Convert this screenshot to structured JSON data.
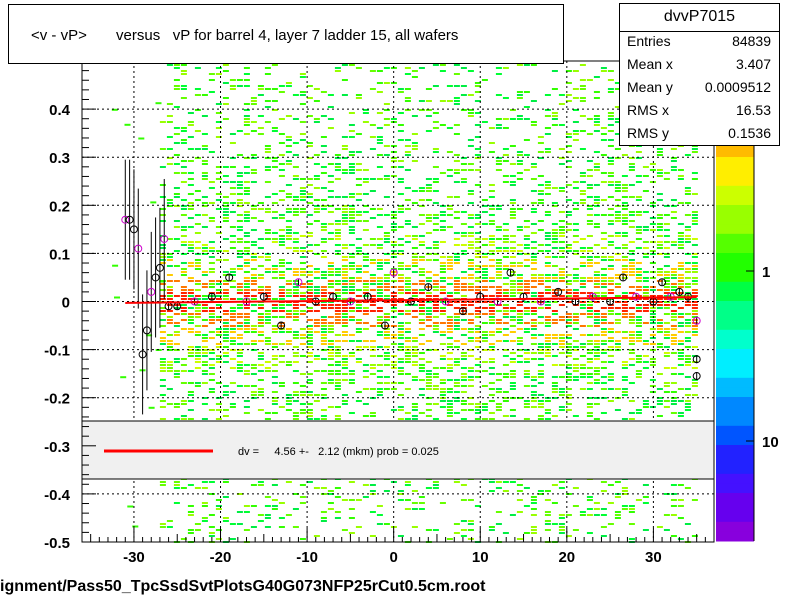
{
  "title": "<v - vP>       versus   vP for barrel 4, layer 7 ladder 15, all wafers",
  "stats": {
    "name": "dvvP7015",
    "rows": [
      {
        "label": "Entries",
        "value": "84839"
      },
      {
        "label": "Mean x",
        "value": "3.407"
      },
      {
        "label": "Mean y",
        "value": "0.0009512"
      },
      {
        "label": "RMS x",
        "value": "16.53"
      },
      {
        "label": "RMS y",
        "value": "0.1536"
      }
    ]
  },
  "legend": {
    "text": "dv =     4.56 +-   2.12 (mkm) prob = 0.025",
    "line_color": "#ff0000"
  },
  "footer": "ignment/Pass50_TpcSsdSvtPlotsG40G073NFP25rCut0.5cm.root",
  "chart_data": {
    "type": "heatmap",
    "xlim": [
      -36,
      37
    ],
    "ylim": [
      -0.5,
      0.5
    ],
    "x_ticks": [
      -30,
      -20,
      -10,
      0,
      10,
      20,
      30
    ],
    "y_ticks": [
      -0.5,
      -0.4,
      -0.3,
      -0.2,
      -0.1,
      0,
      0.1,
      0.2,
      0.3,
      0.4
    ],
    "y_tick_labels": [
      "-0.5",
      "-0.4",
      "-0.3",
      "-0.2",
      "-0.1",
      "0",
      "0.1",
      "0.2",
      "0.3",
      "0.4"
    ],
    "color_scale": {
      "type": "log",
      "ticks": [
        1,
        10
      ],
      "tick_labels": [
        "1",
        "10"
      ]
    },
    "density_x_range": [
      -27,
      35
    ],
    "profile_points": [
      {
        "x": -31,
        "y": 0.17
      },
      {
        "x": -30.5,
        "y": 0.17
      },
      {
        "x": -30,
        "y": 0.15
      },
      {
        "x": -29.5,
        "y": 0.11
      },
      {
        "x": -29,
        "y": -0.11
      },
      {
        "x": -28.5,
        "y": -0.06
      },
      {
        "x": -28,
        "y": 0.02
      },
      {
        "x": -27.5,
        "y": 0.05
      },
      {
        "x": -27,
        "y": 0.07
      },
      {
        "x": -26.5,
        "y": 0.13
      },
      {
        "x": -26,
        "y": -0.01
      },
      {
        "x": -25,
        "y": -0.01
      },
      {
        "x": -23,
        "y": 0.0
      },
      {
        "x": -21,
        "y": 0.01
      },
      {
        "x": -19,
        "y": 0.05
      },
      {
        "x": -17,
        "y": 0.0
      },
      {
        "x": -15,
        "y": 0.01
      },
      {
        "x": -13,
        "y": -0.05
      },
      {
        "x": -11,
        "y": 0.04
      },
      {
        "x": -9,
        "y": 0.0
      },
      {
        "x": -7,
        "y": 0.01
      },
      {
        "x": -5,
        "y": 0.0
      },
      {
        "x": -3,
        "y": 0.01
      },
      {
        "x": -1,
        "y": -0.05
      },
      {
        "x": 0,
        "y": 0.06
      },
      {
        "x": 2,
        "y": 0.0
      },
      {
        "x": 4,
        "y": 0.03
      },
      {
        "x": 6,
        "y": 0.0
      },
      {
        "x": 8,
        "y": -0.02
      },
      {
        "x": 10,
        "y": 0.01
      },
      {
        "x": 12,
        "y": 0.0
      },
      {
        "x": 13.5,
        "y": 0.06
      },
      {
        "x": 15,
        "y": 0.01
      },
      {
        "x": 17,
        "y": 0.0
      },
      {
        "x": 19,
        "y": 0.02
      },
      {
        "x": 21,
        "y": 0.0
      },
      {
        "x": 23,
        "y": 0.01
      },
      {
        "x": 25,
        "y": 0.0
      },
      {
        "x": 26.5,
        "y": 0.05
      },
      {
        "x": 28,
        "y": 0.01
      },
      {
        "x": 30,
        "y": 0.0
      },
      {
        "x": 31,
        "y": 0.04
      },
      {
        "x": 32,
        "y": 0.01
      },
      {
        "x": 33,
        "y": 0.02
      },
      {
        "x": 34,
        "y": 0.01
      },
      {
        "x": 35,
        "y": -0.04
      },
      {
        "x": 35,
        "y": -0.12
      },
      {
        "x": 35,
        "y": -0.155
      }
    ],
    "fit_line": {
      "x": [
        -31,
        35
      ],
      "y": [
        -0.003,
        0.009
      ]
    },
    "colors": {
      "low": "#33ff00",
      "mid": "#ffcc00",
      "high": "#ff2200",
      "fit": "#ff0000"
    }
  }
}
